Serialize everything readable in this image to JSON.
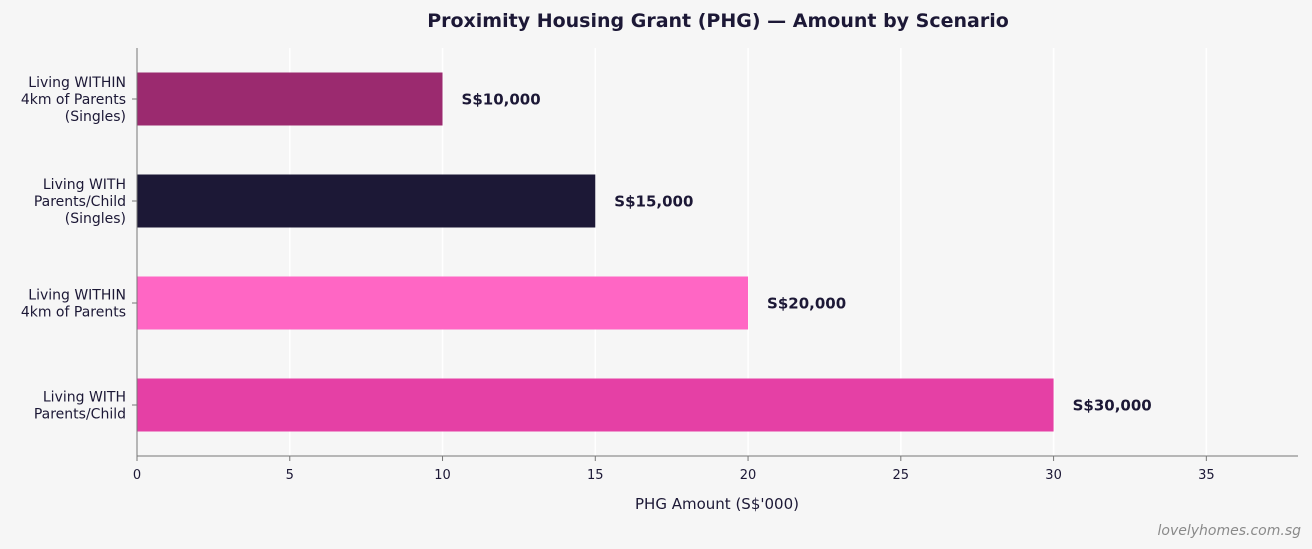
{
  "chart_data": {
    "type": "bar",
    "orientation": "horizontal",
    "title": "Proximity Housing Grant (PHG) — Amount by Scenario",
    "xlabel": "PHG Amount (S$'000)",
    "ylabel": "",
    "xlim": [
      0,
      38
    ],
    "xticks": [
      0,
      5,
      10,
      15,
      20,
      25,
      30,
      35
    ],
    "grid": "vertical",
    "bars": [
      {
        "category": [
          "Living WITHIN",
          "4km of Parents",
          "(Singles)"
        ],
        "value": 10,
        "label": "S$10,000",
        "color": "#9b2a6f"
      },
      {
        "category": [
          "Living WITH",
          "Parents/Child",
          "(Singles)"
        ],
        "value": 15,
        "label": "S$15,000",
        "color": "#1c1836"
      },
      {
        "category": [
          "Living WITHIN",
          "4km of Parents"
        ],
        "value": 20,
        "label": "S$20,000",
        "color": "#ff66c4"
      },
      {
        "category": [
          "Living WITH",
          "Parents/Child"
        ],
        "value": 30,
        "label": "S$30,000",
        "color": "#e540a5"
      }
    ]
  },
  "watermark": "lovelyhomes.com.sg"
}
